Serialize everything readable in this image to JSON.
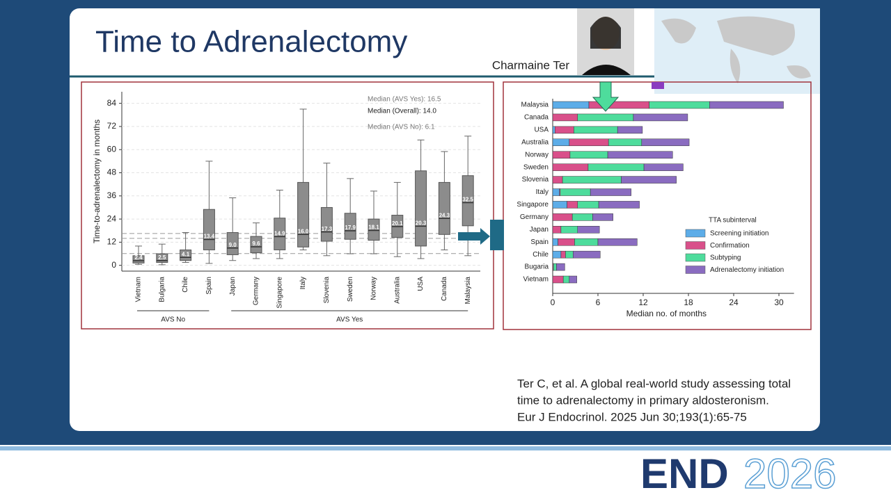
{
  "slide": {
    "title": "Time to Adrenalectomy",
    "speaker": "Charmaine Ter",
    "citation": [
      "Ter C,  et al. A global real-world study assessing total",
      "time to adrenalectomy in primary aldosteronism.",
      "Eur J Endocrinol. 2025 Jun 30;193(1):65-75"
    ],
    "logo": [
      "END",
      "2026"
    ]
  },
  "chart_data": [
    {
      "type": "box",
      "y_label": "Time-to-adrenalectomy in months",
      "categories": [
        "Vietnam",
        "Bulgaria",
        "Chile",
        "Spain",
        "Japan",
        "Germany",
        "Singapore",
        "Italy",
        "Slovenia",
        "Sweden",
        "Norway",
        "Australia",
        "USA",
        "Canada",
        "Malaysia"
      ],
      "values": [
        2.4,
        2.5,
        4.1,
        13.4,
        9,
        9.6,
        14.9,
        16,
        17.3,
        17.9,
        18.1,
        20.1,
        20.3,
        24.3,
        32.5
      ],
      "value_labels": [
        "2.4",
        "2.5",
        "4.1",
        "13.4",
        "9.0",
        "9.6",
        "14.9",
        "16.0",
        "17.3",
        "17.9",
        "18.1",
        "20.1",
        "20.3",
        "24.3",
        "32.5"
      ],
      "q1": [
        1.2,
        1.5,
        2.5,
        8,
        5.5,
        6.5,
        8,
        9.5,
        12.5,
        13.5,
        13,
        14.5,
        10,
        16,
        20.5
      ],
      "q3": [
        5,
        6,
        8,
        29,
        17,
        15,
        24.5,
        43,
        30,
        27,
        24,
        26,
        49,
        43,
        46.5
      ],
      "whisker_low": [
        0.5,
        0.3,
        1.5,
        1,
        2.5,
        3.5,
        3.5,
        8,
        5,
        6,
        6,
        4.5,
        3.5,
        8,
        5
      ],
      "whisker_high": [
        10,
        11,
        17,
        54,
        35,
        22,
        39,
        81,
        53,
        45,
        38.5,
        43,
        65,
        59,
        67
      ],
      "color": "#8c8c8c",
      "groups": [
        "AVS No",
        "AVS Yes"
      ],
      "reference_lines": [
        {
          "label": "Median (AVS Yes): 16.5",
          "value": 16.5
        },
        {
          "label": "Median (Overall): 14.0",
          "value": 14
        },
        {
          "label": "Median (AVS No): 6.1",
          "value": 6.1
        }
      ],
      "ylim": [
        -3,
        90
      ],
      "yticks": [
        0,
        12,
        24,
        36,
        48,
        60,
        72,
        84
      ],
      "grid": true
    },
    {
      "type": "stacked-barh",
      "x_label": "Median no. of months",
      "legend_title": "TTA subinterval",
      "legend": "right",
      "categories": [
        "Malaysia",
        "Canada",
        "USA",
        "Australia",
        "Norway",
        "Sweden",
        "Slovenia",
        "Italy",
        "Singapore",
        "Germany",
        "Japan",
        "Spain",
        "Chile",
        "Bugaria",
        "Vietnam"
      ],
      "series": [
        {
          "name": "Screening initiation",
          "color": "#5dade8",
          "values": [
            4.8,
            0,
            0.3,
            2.2,
            0,
            0,
            0,
            0.9,
            1.9,
            0,
            0,
            0.7,
            1.1,
            0,
            0
          ]
        },
        {
          "name": "Confirmation",
          "color": "#d9508a",
          "values": [
            8,
            3.3,
            2.5,
            5.2,
            2.3,
            4.7,
            1.3,
            0.1,
            1.4,
            2.6,
            1.1,
            2.2,
            0.6,
            0.1,
            1.4
          ]
        },
        {
          "name": "Subtyping",
          "color": "#4edc9c",
          "values": [
            8,
            7.4,
            5.8,
            4.4,
            5,
            7.4,
            7.8,
            4,
            2.8,
            2.7,
            2.2,
            3.1,
            1,
            0.4,
            0.8
          ]
        },
        {
          "name": "Adrenalectomy initiation",
          "color": "#8a6cc0",
          "values": [
            9.8,
            7.2,
            3.3,
            6.3,
            8.6,
            5.2,
            7.3,
            5.4,
            5.4,
            2.7,
            2.9,
            5.2,
            3.6,
            1.1,
            1
          ]
        }
      ],
      "xlim": [
        0,
        32
      ],
      "xticks": [
        0,
        6,
        12,
        18,
        24,
        30
      ]
    }
  ]
}
